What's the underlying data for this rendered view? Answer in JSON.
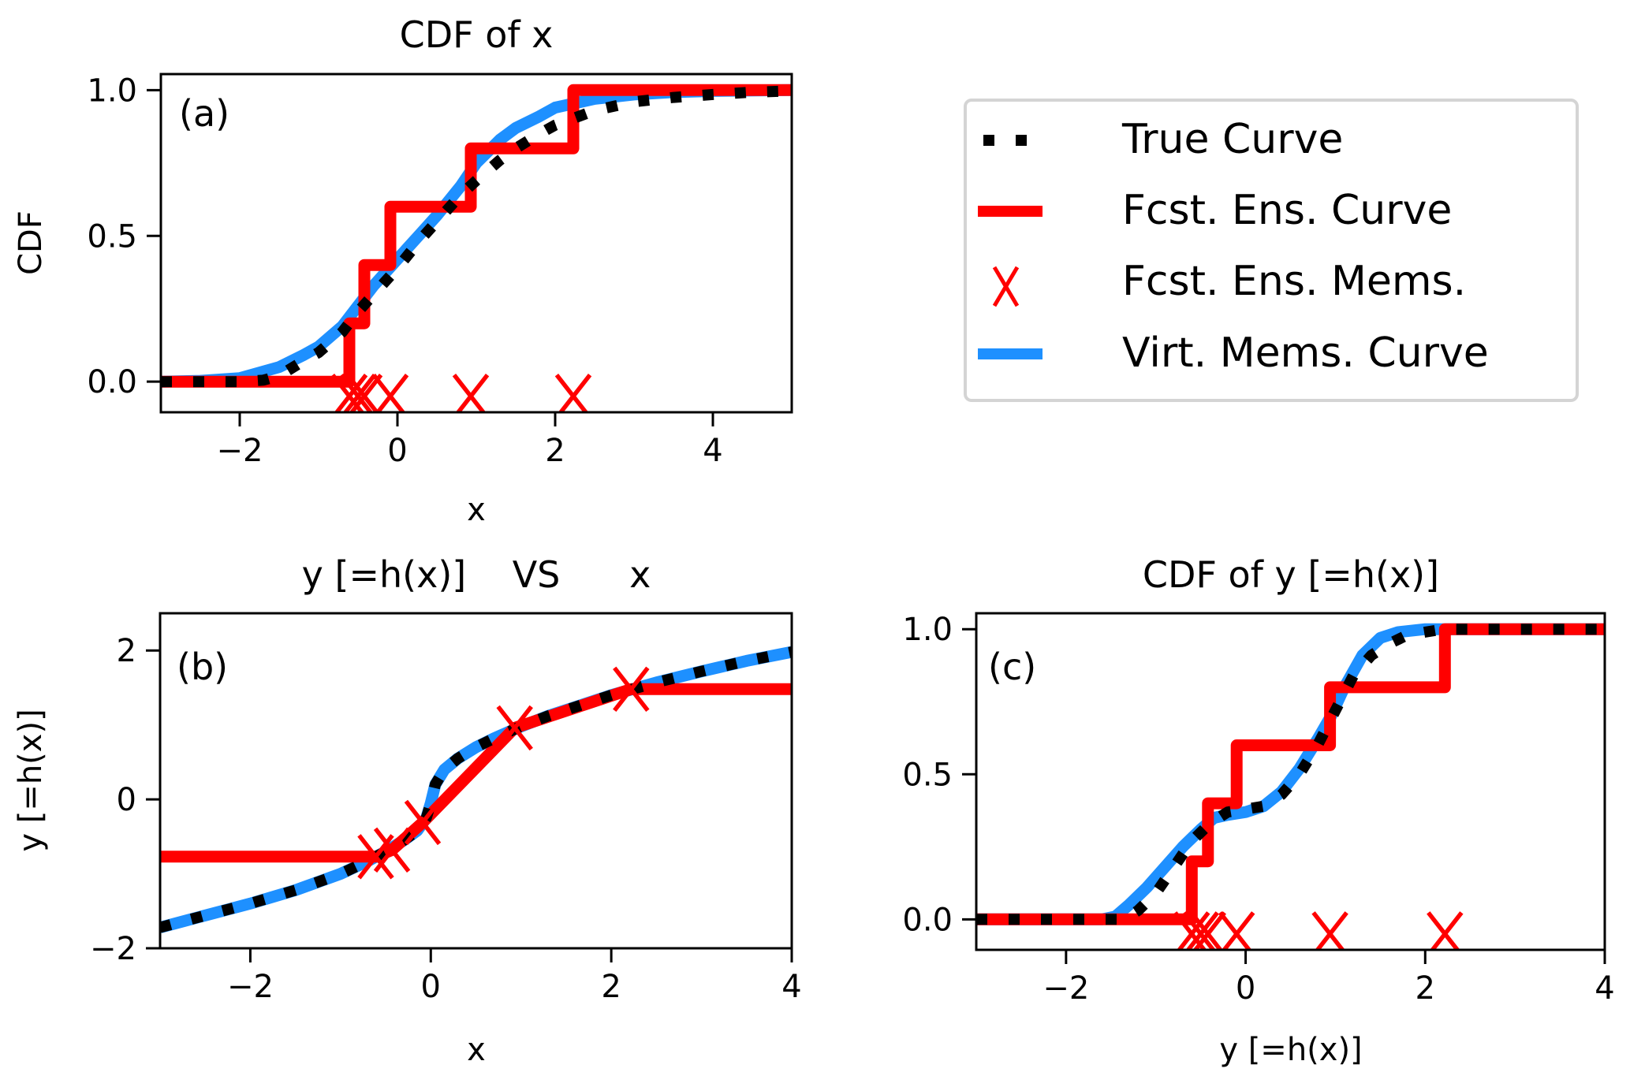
{
  "figure": {
    "legend": {
      "entries": [
        {
          "label": "True Curve",
          "style": "dotted",
          "color": "#000000"
        },
        {
          "label": "Fcst. Ens. Curve",
          "style": "solid",
          "color": "#ff0000"
        },
        {
          "label": "Fcst. Ens. Mems.",
          "style": "x-marker",
          "color": "#ff0000"
        },
        {
          "label": "Virt. Mems. Curve",
          "style": "solid",
          "color": "#1e90ff"
        }
      ]
    }
  },
  "chart_data": [
    {
      "id": "a",
      "type": "line",
      "title": "CDF of x",
      "panel_label": "(a)",
      "xlabel": "x",
      "ylabel": "CDF",
      "xlim": [
        -3,
        5
      ],
      "ylim": [
        -0.105,
        1.055
      ],
      "xticks": [
        -2,
        0,
        2,
        4
      ],
      "xtick_labels": [
        "−2",
        "0",
        "2",
        "4"
      ],
      "yticks": [
        0.0,
        0.5,
        1.0
      ],
      "ytick_labels": [
        "0.0",
        "0.5",
        "1.0"
      ],
      "grid": false,
      "series": [
        {
          "name": "Virt. Mems. Curve",
          "kind": "line",
          "color": "#1e90ff",
          "x": [
            -3,
            -2.5,
            -2,
            -1.5,
            -1.2,
            -1,
            -0.7,
            -0.5,
            -0.3,
            0,
            0.3,
            0.5,
            0.8,
            1,
            1.3,
            1.5,
            1.8,
            2,
            2.5,
            3,
            3.5,
            4,
            5
          ],
          "y": [
            0.0,
            0.003,
            0.012,
            0.05,
            0.09,
            0.12,
            0.19,
            0.26,
            0.33,
            0.42,
            0.51,
            0.57,
            0.67,
            0.75,
            0.83,
            0.87,
            0.91,
            0.94,
            0.97,
            0.985,
            0.993,
            0.997,
            1.0
          ]
        },
        {
          "name": "True Curve",
          "kind": "line",
          "color": "#000000",
          "x": [
            -3,
            -2.5,
            -2,
            -1.7,
            -1.5,
            -1.2,
            -1,
            -0.7,
            -0.5,
            -0.3,
            0,
            0.3,
            0.5,
            0.8,
            1,
            1.3,
            1.5,
            1.8,
            2,
            2.5,
            3,
            3.5,
            4,
            4.5,
            5
          ],
          "y": [
            0.0,
            0.0,
            0.0,
            0.005,
            0.02,
            0.07,
            0.1,
            0.17,
            0.24,
            0.3,
            0.39,
            0.49,
            0.55,
            0.64,
            0.69,
            0.76,
            0.8,
            0.85,
            0.88,
            0.93,
            0.96,
            0.975,
            0.985,
            0.993,
            0.997
          ]
        },
        {
          "name": "Fcst. Ens. Curve",
          "kind": "step",
          "color": "#ff0000",
          "x": [
            -3,
            -0.61,
            -0.42,
            -0.09,
            0.93,
            2.23,
            5
          ],
          "y": [
            0.0,
            0.2,
            0.4,
            0.6,
            0.8,
            1.0,
            1.0
          ]
        },
        {
          "name": "Fcst. Ens. Mems.",
          "kind": "scatter",
          "marker": "x",
          "color": "#ff0000",
          "x": [
            -0.61,
            -0.5,
            -0.42,
            -0.09,
            0.93,
            2.23
          ],
          "y": [
            -0.05,
            -0.05,
            -0.05,
            -0.05,
            -0.05,
            -0.05
          ]
        }
      ]
    },
    {
      "id": "b",
      "type": "line",
      "title": "y [=h(x)]    VS      x",
      "panel_label": "(b)",
      "xlabel": "x",
      "ylabel": "y [=h(x)]",
      "xlim": [
        -3,
        4
      ],
      "ylim": [
        -2,
        2.5
      ],
      "xticks": [
        -2,
        0,
        2,
        4
      ],
      "xtick_labels": [
        "−2",
        "0",
        "2",
        "4"
      ],
      "yticks": [
        -2,
        0,
        2
      ],
      "ytick_labels": [
        "−2",
        "0",
        "2"
      ],
      "grid": false,
      "series": [
        {
          "name": "Virt. Mems. Curve",
          "kind": "line",
          "color": "#1e90ff",
          "x": [
            -3,
            -2.5,
            -2,
            -1.5,
            -1,
            -0.7,
            -0.5,
            -0.3,
            -0.15,
            -0.05,
            0,
            0.05,
            0.15,
            0.3,
            0.5,
            0.7,
            1,
            1.3,
            1.6,
            2,
            2.5,
            3,
            3.5,
            4
          ],
          "y": [
            -1.72,
            -1.56,
            -1.4,
            -1.22,
            -1.0,
            -0.83,
            -0.7,
            -0.55,
            -0.42,
            -0.25,
            -0.05,
            0.2,
            0.4,
            0.55,
            0.7,
            0.82,
            0.98,
            1.12,
            1.24,
            1.4,
            1.57,
            1.72,
            1.86,
            1.98
          ]
        },
        {
          "name": "True Curve",
          "kind": "line",
          "color": "#000000",
          "x": [
            -3,
            -2.5,
            -2,
            -1.5,
            -1,
            -0.7,
            -0.5,
            -0.3,
            -0.15,
            -0.05,
            0,
            0.05,
            0.15,
            0.3,
            0.5,
            0.7,
            1,
            1.3,
            1.6,
            2,
            2.5,
            3,
            3.5,
            4
          ],
          "y": [
            -1.72,
            -1.56,
            -1.4,
            -1.22,
            -1.0,
            -0.83,
            -0.7,
            -0.55,
            -0.42,
            -0.25,
            -0.05,
            0.2,
            0.4,
            0.55,
            0.7,
            0.82,
            0.98,
            1.12,
            1.24,
            1.4,
            1.57,
            1.72,
            1.86,
            1.98
          ]
        },
        {
          "name": "Fcst. Ens. Curve",
          "kind": "line",
          "color": "#ff0000",
          "x": [
            -3,
            -0.61,
            -0.43,
            -0.09,
            0.93,
            2.22,
            4
          ],
          "y": [
            -0.77,
            -0.77,
            -0.68,
            -0.31,
            0.96,
            1.48,
            1.48
          ]
        },
        {
          "name": "Fcst. Ens. Mems.",
          "kind": "scatter",
          "marker": "x",
          "color": "#ff0000",
          "x": [
            -0.61,
            -0.43,
            -0.09,
            0.93,
            2.22
          ],
          "y": [
            -0.77,
            -0.68,
            -0.31,
            0.96,
            1.48
          ]
        }
      ]
    },
    {
      "id": "c",
      "type": "line",
      "title": "CDF of y [=h(x)]",
      "panel_label": "(c)",
      "xlabel": "y [=h(x)]",
      "ylabel": "",
      "xlim": [
        -3,
        4
      ],
      "ylim": [
        -0.105,
        1.055
      ],
      "xticks": [
        -2,
        0,
        2,
        4
      ],
      "xtick_labels": [
        "−2",
        "0",
        "2",
        "4"
      ],
      "yticks": [
        0.0,
        0.5,
        1.0
      ],
      "ytick_labels": [
        "0.0",
        "0.5",
        "1.0"
      ],
      "grid": false,
      "series": [
        {
          "name": "Virt. Mems. Curve",
          "kind": "line",
          "color": "#1e90ff",
          "x": [
            -3,
            -1.6,
            -1.45,
            -1.3,
            -1.1,
            -0.9,
            -0.7,
            -0.5,
            -0.35,
            -0.2,
            0,
            0.2,
            0.4,
            0.6,
            0.8,
            0.95,
            1.1,
            1.3,
            1.5,
            1.7,
            2,
            4
          ],
          "y": [
            0.0,
            0.0,
            0.01,
            0.05,
            0.11,
            0.18,
            0.25,
            0.31,
            0.35,
            0.36,
            0.37,
            0.39,
            0.44,
            0.52,
            0.62,
            0.7,
            0.8,
            0.91,
            0.97,
            0.99,
            1.0,
            1.0
          ]
        },
        {
          "name": "True Curve",
          "kind": "line",
          "color": "#000000",
          "x": [
            -3,
            -1.35,
            -1.2,
            -1.0,
            -0.8,
            -0.6,
            -0.4,
            -0.2,
            0,
            0.2,
            0.4,
            0.6,
            0.8,
            1.0,
            1.2,
            1.4,
            1.6,
            1.8,
            2.0,
            2.2,
            4
          ],
          "y": [
            0.0,
            0.0,
            0.03,
            0.09,
            0.18,
            0.27,
            0.33,
            0.37,
            0.38,
            0.39,
            0.43,
            0.5,
            0.6,
            0.72,
            0.84,
            0.91,
            0.95,
            0.98,
            0.99,
            1.0,
            1.0
          ]
        },
        {
          "name": "Fcst. Ens. Curve",
          "kind": "step",
          "color": "#ff0000",
          "x": [
            -3,
            -0.6,
            -0.42,
            -0.1,
            0.94,
            2.22,
            4
          ],
          "y": [
            0.0,
            0.2,
            0.4,
            0.6,
            0.8,
            1.0,
            1.0
          ]
        },
        {
          "name": "Fcst. Ens. Mems.",
          "kind": "scatter",
          "marker": "x",
          "color": "#ff0000",
          "x": [
            -0.6,
            -0.5,
            -0.42,
            -0.1,
            0.94,
            2.22
          ],
          "y": [
            -0.05,
            -0.05,
            -0.05,
            -0.05,
            -0.05,
            -0.05
          ]
        }
      ]
    }
  ]
}
